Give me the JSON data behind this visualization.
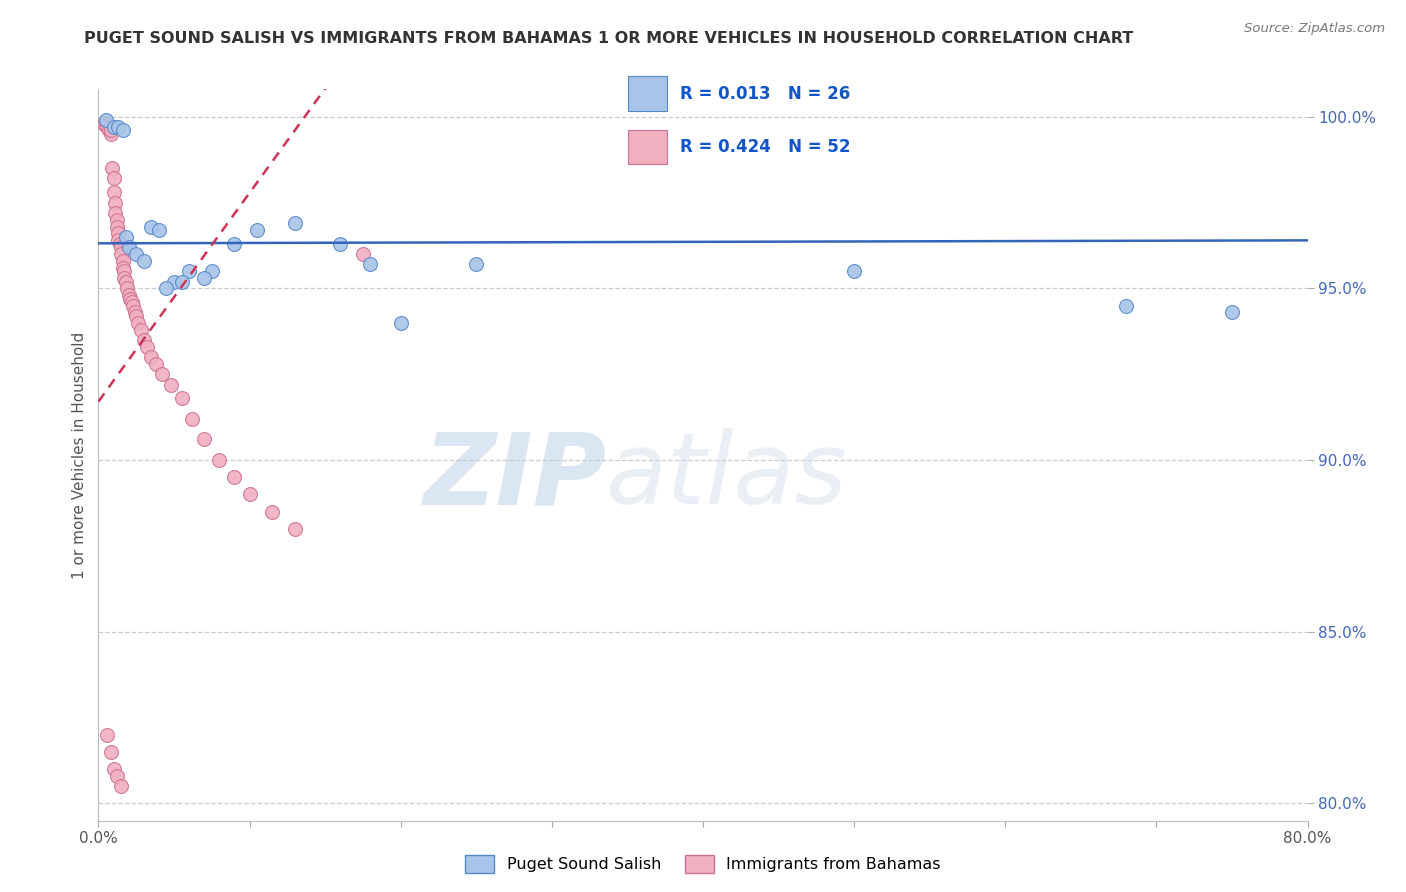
{
  "title": "PUGET SOUND SALISH VS IMMIGRANTS FROM BAHAMAS 1 OR MORE VEHICLES IN HOUSEHOLD CORRELATION CHART",
  "source": "Source: ZipAtlas.com",
  "ylabel": "1 or more Vehicles in Household",
  "xlim": [
    0.0,
    0.8
  ],
  "ylim": [
    0.795,
    1.008
  ],
  "xticks": [
    0.0,
    0.1,
    0.2,
    0.3,
    0.4,
    0.5,
    0.6,
    0.7,
    0.8
  ],
  "xticklabels": [
    "0.0%",
    "",
    "",
    "",
    "",
    "",
    "",
    "",
    "80.0%"
  ],
  "yticks": [
    0.8,
    0.85,
    0.9,
    0.95,
    1.0
  ],
  "yticklabels": [
    "80.0%",
    "85.0%",
    "90.0%",
    "95.0%",
    "100.0%"
  ],
  "blue_R": 0.013,
  "blue_N": 26,
  "pink_R": 0.424,
  "pink_N": 52,
  "blue_x": [
    0.005,
    0.01,
    0.013,
    0.016,
    0.018,
    0.02,
    0.025,
    0.03,
    0.035,
    0.04,
    0.05,
    0.06,
    0.075,
    0.09,
    0.105,
    0.13,
    0.16,
    0.2,
    0.25,
    0.18,
    0.045,
    0.055,
    0.07,
    0.5,
    0.68,
    0.75
  ],
  "blue_y": [
    0.999,
    0.997,
    0.997,
    0.996,
    0.965,
    0.962,
    0.96,
    0.958,
    0.968,
    0.967,
    0.952,
    0.955,
    0.955,
    0.963,
    0.967,
    0.969,
    0.963,
    0.94,
    0.957,
    0.957,
    0.95,
    0.952,
    0.953,
    0.955,
    0.945,
    0.943
  ],
  "pink_x": [
    0.004,
    0.005,
    0.006,
    0.007,
    0.008,
    0.008,
    0.009,
    0.01,
    0.01,
    0.011,
    0.011,
    0.012,
    0.012,
    0.013,
    0.013,
    0.014,
    0.015,
    0.015,
    0.016,
    0.016,
    0.017,
    0.017,
    0.018,
    0.019,
    0.02,
    0.021,
    0.022,
    0.023,
    0.024,
    0.025,
    0.026,
    0.028,
    0.03,
    0.032,
    0.035,
    0.038,
    0.042,
    0.048,
    0.055,
    0.062,
    0.07,
    0.08,
    0.09,
    0.1,
    0.115,
    0.13,
    0.006,
    0.008,
    0.01,
    0.012,
    0.015,
    0.175
  ],
  "pink_y": [
    0.998,
    0.998,
    0.997,
    0.996,
    0.995,
    0.996,
    0.985,
    0.982,
    0.978,
    0.975,
    0.972,
    0.97,
    0.968,
    0.966,
    0.964,
    0.963,
    0.962,
    0.96,
    0.958,
    0.956,
    0.955,
    0.953,
    0.952,
    0.95,
    0.948,
    0.947,
    0.946,
    0.945,
    0.943,
    0.942,
    0.94,
    0.938,
    0.935,
    0.933,
    0.93,
    0.928,
    0.925,
    0.922,
    0.918,
    0.912,
    0.906,
    0.9,
    0.895,
    0.89,
    0.885,
    0.88,
    0.82,
    0.815,
    0.81,
    0.808,
    0.805,
    0.96
  ],
  "blue_color": "#a8c4e8",
  "pink_color": "#f0b0c0",
  "blue_line_color": "#3366bb",
  "pink_line_color": "#cc3355",
  "watermark_zip": "ZIP",
  "watermark_atlas": "atlas",
  "marker_size": 100
}
